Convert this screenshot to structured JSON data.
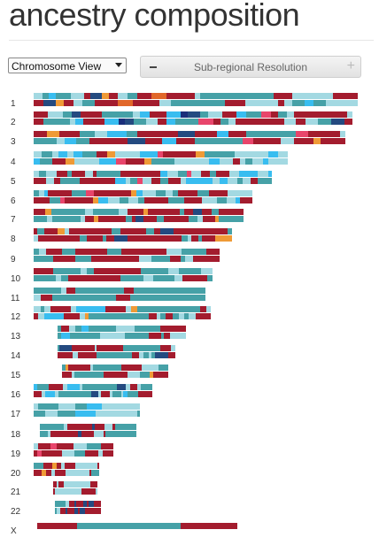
{
  "header": {
    "title": "ancestry composition"
  },
  "controls": {
    "view_select": "Chromosome View",
    "resolution_label": "Sub-regional Resolution",
    "minus_icon": "minus-icon",
    "plus_icon": "plus-icon"
  },
  "colors": {
    "a": "#a31c2e",
    "b": "#46a1a7",
    "c": "#a3d9e2",
    "d": "#38bdf0",
    "e": "#244a80",
    "f": "#ef9a36",
    "g": "#e8456b",
    "h": "#1a2e7a",
    "i": "#e1672a",
    "j": "#eed77a"
  },
  "chromosomes": [
    {
      "label": "1"
    },
    {
      "label": "2"
    },
    {
      "label": "3"
    },
    {
      "label": "4"
    },
    {
      "label": "5"
    },
    {
      "label": "6"
    },
    {
      "label": "7"
    },
    {
      "label": "8"
    },
    {
      "label": "9"
    },
    {
      "label": "10"
    },
    {
      "label": "11"
    },
    {
      "label": "12"
    },
    {
      "label": "13"
    },
    {
      "label": "14"
    },
    {
      "label": "15"
    },
    {
      "label": "16"
    },
    {
      "label": "17"
    },
    {
      "label": "18"
    },
    {
      "label": "19"
    },
    {
      "label": "20"
    },
    {
      "label": "21"
    },
    {
      "label": "22"
    },
    {
      "label": "X"
    }
  ]
}
